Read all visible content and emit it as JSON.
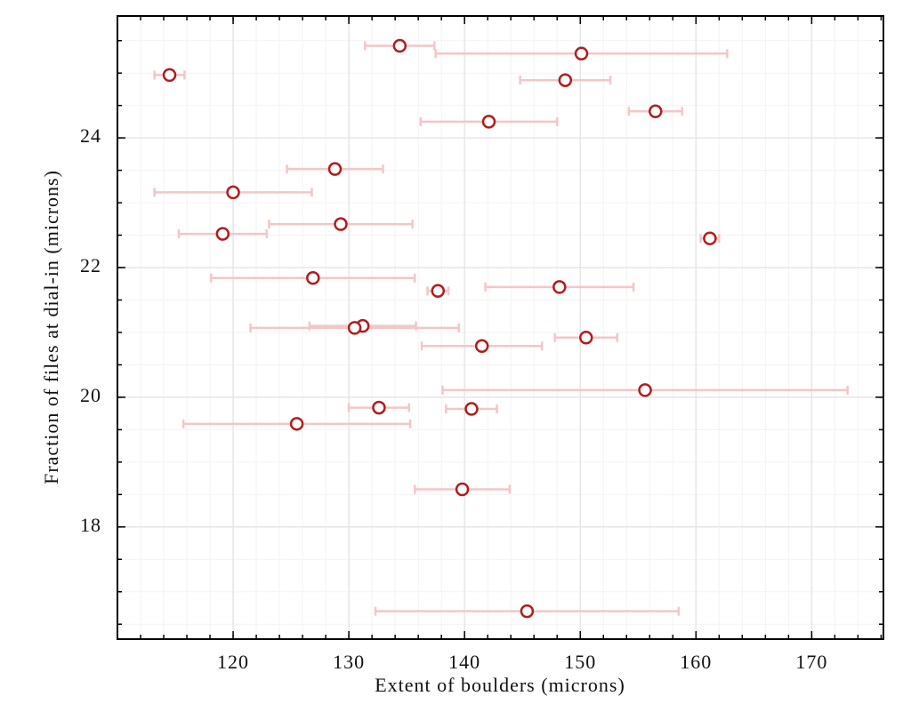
{
  "chart_data": {
    "type": "scatter",
    "xlabel": "Extent of boulders (microns)",
    "ylabel": "Fraction of files at dial-in (microns)",
    "xlim": [
      110,
      176.2
    ],
    "ylim": [
      16.27,
      25.88
    ],
    "xticks": [
      120,
      130,
      140,
      150,
      160,
      170
    ],
    "yticks": [
      18,
      20,
      22,
      24
    ],
    "xminor": 2,
    "yminor": 0.5,
    "grid": true,
    "series": [
      {
        "color": "#b01e1e",
        "error_color": "#f4c6c6",
        "x": [
          134.4,
          150.1,
          114.5,
          148.7,
          156.5,
          142.1,
          128.8,
          120.0,
          129.3,
          119.1,
          161.2,
          126.9,
          148.2,
          137.7,
          131.2,
          130.5,
          150.5,
          141.5,
          155.6,
          132.6,
          140.6,
          125.5,
          139.8,
          145.4
        ],
        "values": [
          25.42,
          25.3,
          24.97,
          24.89,
          24.41,
          24.25,
          23.52,
          23.16,
          22.67,
          22.52,
          22.45,
          21.84,
          21.7,
          21.64,
          21.1,
          21.07,
          20.92,
          20.79,
          20.11,
          19.84,
          19.82,
          19.59,
          18.58,
          16.7
        ],
        "xerr": [
          3.0,
          12.6,
          1.3,
          3.9,
          2.3,
          5.9,
          4.15,
          6.8,
          6.2,
          3.8,
          0.8,
          8.8,
          6.4,
          0.9,
          4.6,
          9.0,
          2.7,
          5.2,
          17.5,
          2.6,
          2.2,
          9.8,
          4.1,
          13.1
        ]
      }
    ]
  }
}
